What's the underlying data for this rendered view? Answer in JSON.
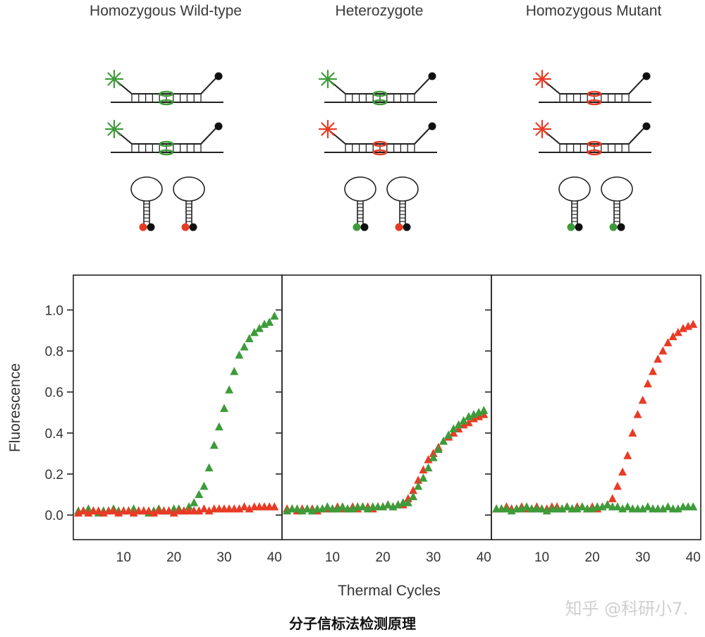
{
  "colors": {
    "wild_type_probe": "#3e9b3a",
    "mutant_probe": "#e83b25",
    "quencher": "#111111",
    "axis": "#222222"
  },
  "diagrams": [
    {
      "title": "Homozygous Wild-type",
      "probes": [
        "wild_type",
        "wild_type"
      ],
      "free_beacons": [
        "mutant",
        "mutant"
      ]
    },
    {
      "title": "Heterozygote",
      "probes": [
        "wild_type",
        "mutant"
      ],
      "free_beacons": [
        "wild_type",
        "mutant"
      ]
    },
    {
      "title": "Homozygous Mutant",
      "probes": [
        "mutant",
        "mutant"
      ],
      "free_beacons": [
        "wild_type",
        "wild_type"
      ]
    }
  ],
  "chart_data": {
    "type": "scatter",
    "ylabel": "Fluorescence",
    "xlabel": "Thermal Cycles",
    "xlim": [
      0,
      41.5
    ],
    "ylim": [
      -0.12,
      1.17
    ],
    "xticks": [
      "10",
      "20",
      "30",
      "40"
    ],
    "yticks": [
      "0.0",
      "0.2",
      "0.4",
      "0.6",
      "0.8",
      "1.0"
    ],
    "marker": "triangle",
    "panels": [
      {
        "title": "Homozygous Wild-type",
        "series": [
          {
            "name": "wild-type (green)",
            "color": "#3e9b3a",
            "x": [
              1,
              2,
              3,
              4,
              5,
              6,
              7,
              8,
              9,
              10,
              11,
              12,
              13,
              14,
              15,
              16,
              17,
              18,
              19,
              20,
              21,
              22,
              23,
              24,
              25,
              26,
              27,
              28,
              29,
              30,
              31,
              32,
              33,
              34,
              35,
              36,
              37,
              38,
              39,
              40
            ],
            "y": [
              0.02,
              0.02,
              0.03,
              0.02,
              0.01,
              0.02,
              0.02,
              0.03,
              0.02,
              0.02,
              0.02,
              0.03,
              0.02,
              0.02,
              0.01,
              0.02,
              0.03,
              0.02,
              0.02,
              0.03,
              0.03,
              0.02,
              0.04,
              0.06,
              0.1,
              0.14,
              0.23,
              0.34,
              0.43,
              0.52,
              0.61,
              0.7,
              0.78,
              0.82,
              0.86,
              0.89,
              0.91,
              0.93,
              0.94,
              0.97
            ]
          },
          {
            "name": "mutant (red)",
            "color": "#e83b25",
            "x": [
              1,
              2,
              3,
              4,
              5,
              6,
              7,
              8,
              9,
              10,
              11,
              12,
              13,
              14,
              15,
              16,
              17,
              18,
              19,
              20,
              21,
              22,
              23,
              24,
              25,
              26,
              27,
              28,
              29,
              30,
              31,
              32,
              33,
              34,
              35,
              36,
              37,
              38,
              39,
              40
            ],
            "y": [
              0.01,
              0.02,
              0.01,
              0.02,
              0.02,
              0.01,
              0.02,
              0.02,
              0.01,
              0.02,
              0.02,
              0.01,
              0.02,
              0.02,
              0.02,
              0.01,
              0.02,
              0.02,
              0.02,
              0.01,
              0.02,
              0.02,
              0.02,
              0.02,
              0.02,
              0.03,
              0.02,
              0.03,
              0.03,
              0.03,
              0.03,
              0.03,
              0.03,
              0.04,
              0.03,
              0.04,
              0.04,
              0.04,
              0.04,
              0.04
            ]
          }
        ]
      },
      {
        "title": "Heterozygote",
        "series": [
          {
            "name": "mutant (red)",
            "color": "#e83b25",
            "x": [
              1,
              2,
              3,
              4,
              5,
              6,
              7,
              8,
              9,
              10,
              11,
              12,
              13,
              14,
              15,
              16,
              17,
              18,
              19,
              20,
              21,
              22,
              23,
              24,
              25,
              26,
              27,
              28,
              29,
              30,
              31,
              32,
              33,
              34,
              35,
              36,
              37,
              38,
              39,
              40
            ],
            "y": [
              0.03,
              0.03,
              0.02,
              0.03,
              0.03,
              0.03,
              0.02,
              0.03,
              0.03,
              0.03,
              0.04,
              0.03,
              0.03,
              0.04,
              0.03,
              0.04,
              0.04,
              0.03,
              0.04,
              0.04,
              0.05,
              0.04,
              0.05,
              0.05,
              0.08,
              0.12,
              0.17,
              0.22,
              0.27,
              0.3,
              0.33,
              0.36,
              0.38,
              0.4,
              0.42,
              0.44,
              0.45,
              0.47,
              0.48,
              0.49
            ]
          },
          {
            "name": "wild-type (green)",
            "color": "#3e9b3a",
            "x": [
              1,
              2,
              3,
              4,
              5,
              6,
              7,
              8,
              9,
              10,
              11,
              12,
              13,
              14,
              15,
              16,
              17,
              18,
              19,
              20,
              21,
              22,
              23,
              24,
              25,
              26,
              27,
              28,
              29,
              30,
              31,
              32,
              33,
              34,
              35,
              36,
              37,
              38,
              39,
              40
            ],
            "y": [
              0.02,
              0.03,
              0.03,
              0.02,
              0.03,
              0.02,
              0.03,
              0.03,
              0.04,
              0.03,
              0.03,
              0.04,
              0.03,
              0.03,
              0.04,
              0.04,
              0.03,
              0.04,
              0.04,
              0.04,
              0.05,
              0.04,
              0.05,
              0.06,
              0.06,
              0.09,
              0.14,
              0.18,
              0.23,
              0.28,
              0.32,
              0.36,
              0.39,
              0.42,
              0.44,
              0.46,
              0.48,
              0.49,
              0.5,
              0.51
            ]
          }
        ]
      },
      {
        "title": "Homozygous Mutant",
        "series": [
          {
            "name": "mutant (red)",
            "color": "#e83b25",
            "x": [
              1,
              2,
              3,
              4,
              5,
              6,
              7,
              8,
              9,
              10,
              11,
              12,
              13,
              14,
              15,
              16,
              17,
              18,
              19,
              20,
              21,
              22,
              23,
              24,
              25,
              26,
              27,
              28,
              29,
              30,
              31,
              32,
              33,
              34,
              35,
              36,
              37,
              38,
              39,
              40
            ],
            "y": [
              0.03,
              0.03,
              0.04,
              0.03,
              0.03,
              0.04,
              0.03,
              0.03,
              0.04,
              0.03,
              0.03,
              0.04,
              0.04,
              0.03,
              0.04,
              0.03,
              0.04,
              0.04,
              0.03,
              0.04,
              0.03,
              0.04,
              0.05,
              0.08,
              0.14,
              0.21,
              0.29,
              0.4,
              0.49,
              0.56,
              0.64,
              0.7,
              0.76,
              0.8,
              0.84,
              0.87,
              0.89,
              0.91,
              0.92,
              0.93
            ]
          },
          {
            "name": "wild-type (green)",
            "color": "#3e9b3a",
            "x": [
              1,
              2,
              3,
              4,
              5,
              6,
              7,
              8,
              9,
              10,
              11,
              12,
              13,
              14,
              15,
              16,
              17,
              18,
              19,
              20,
              21,
              22,
              23,
              24,
              25,
              26,
              27,
              28,
              29,
              30,
              31,
              32,
              33,
              34,
              35,
              36,
              37,
              38,
              39,
              40
            ],
            "y": [
              0.03,
              0.03,
              0.03,
              0.02,
              0.03,
              0.03,
              0.04,
              0.03,
              0.03,
              0.03,
              0.02,
              0.03,
              0.03,
              0.03,
              0.04,
              0.03,
              0.03,
              0.04,
              0.03,
              0.03,
              0.04,
              0.04,
              0.05,
              0.04,
              0.04,
              0.03,
              0.04,
              0.03,
              0.03,
              0.03,
              0.04,
              0.03,
              0.03,
              0.03,
              0.04,
              0.03,
              0.03,
              0.04,
              0.04,
              0.04
            ]
          }
        ]
      }
    ]
  },
  "caption": "分子信标法检测原理",
  "watermark": "知乎 @科研小7."
}
